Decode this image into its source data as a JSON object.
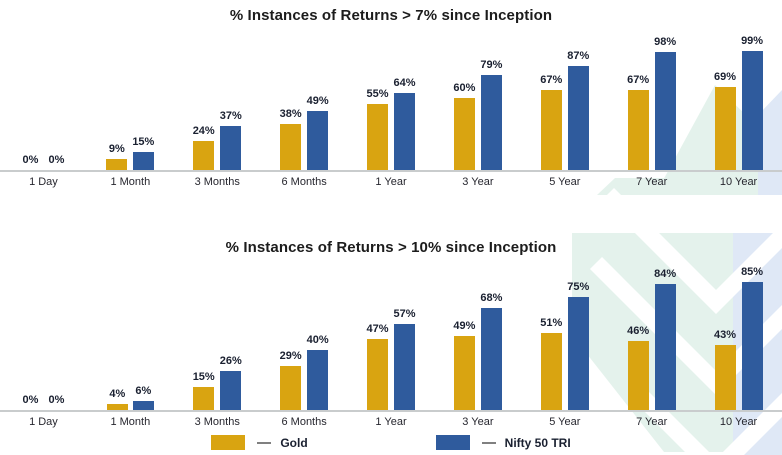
{
  "colors": {
    "gold": "#D9A411",
    "nifty_blue": "#2F5B9D",
    "axis_line": "#C9CCCD",
    "label_text": "#1A2030",
    "watermark_mint": "#E4F2EC",
    "watermark_blue": "#DFE8F6"
  },
  "chart_data": [
    {
      "type": "bar",
      "title": "% Instances of Returns > 7% since Inception",
      "categories": [
        "1 Day",
        "1 Month",
        "3 Months",
        "6 Months",
        "1 Year",
        "3 Year",
        "5 Year",
        "7 Year",
        "10 Year"
      ],
      "series": [
        {
          "name": "Gold",
          "color": "#D9A411",
          "values": [
            0,
            9,
            24,
            38,
            55,
            60,
            67,
            67,
            69
          ]
        },
        {
          "name": "Nifty 50 TRI",
          "color": "#2F5B9D",
          "values": [
            0,
            15,
            37,
            49,
            64,
            79,
            87,
            98,
            99
          ]
        }
      ],
      "value_suffix": "%",
      "xlabel": "",
      "ylabel": "",
      "ylim": [
        0,
        100
      ],
      "grid": false,
      "data_labels": true,
      "legend_position": "shared-bottom"
    },
    {
      "type": "bar",
      "title": "% Instances of Returns > 10% since Inception",
      "categories": [
        "1 Day",
        "1 Month",
        "3 Months",
        "6 Months",
        "1 Year",
        "3 Year",
        "5 Year",
        "7 Year",
        "10 Year"
      ],
      "series": [
        {
          "name": "Gold",
          "color": "#D9A411",
          "values": [
            0,
            4,
            15,
            29,
            47,
            49,
            51,
            46,
            43
          ]
        },
        {
          "name": "Nifty 50 TRI",
          "color": "#2F5B9D",
          "values": [
            0,
            6,
            26,
            40,
            57,
            68,
            75,
            84,
            85
          ]
        }
      ],
      "value_suffix": "%",
      "xlabel": "",
      "ylabel": "",
      "ylim": [
        0,
        90
      ],
      "grid": false,
      "data_labels": true,
      "legend_position": "shared-bottom"
    }
  ],
  "legend": {
    "items": [
      {
        "label": "Gold",
        "color": "#D9A411"
      },
      {
        "label": "Nifty 50 TRI",
        "color": "#2F5B9D"
      }
    ]
  }
}
